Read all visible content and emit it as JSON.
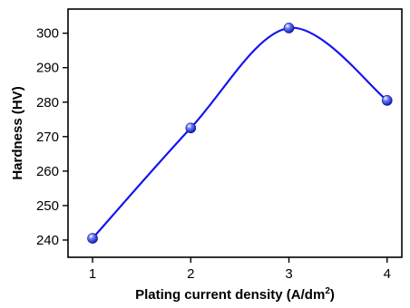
{
  "chart_data": {
    "type": "line",
    "xlabel": "Plating current density (A/dm",
    "xlabel_sup": "2",
    "xlabel_end": ")",
    "ylabel": "Hardness (HV)",
    "x": [
      1,
      2,
      3,
      4
    ],
    "y": [
      240.5,
      272.5,
      301.5,
      280.5
    ],
    "xlim": [
      0.75,
      4.15
    ],
    "ylim": [
      235,
      307
    ],
    "xticks": [
      1,
      2,
      3,
      4
    ],
    "yticks": [
      240,
      250,
      260,
      270,
      280,
      290,
      300
    ],
    "grid": false,
    "line_color": "#1515ee",
    "marker": "sphere"
  }
}
